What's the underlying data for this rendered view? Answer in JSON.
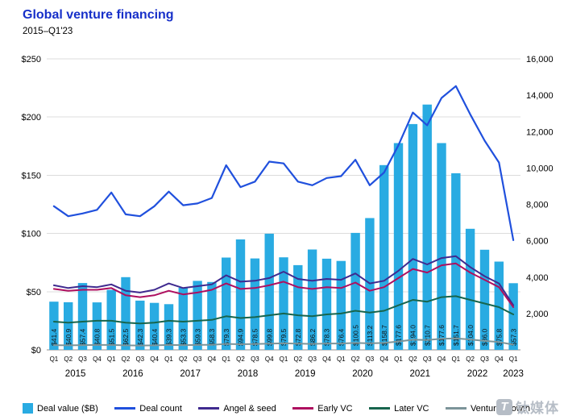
{
  "header": {
    "title": "Global venture financing",
    "subtitle": "2015–Q1'23"
  },
  "chart_data": {
    "type": "bar+line combo",
    "title": "Global venture financing",
    "subtitle": "2015–Q1'23",
    "grid": "horizontal",
    "legend_position": "bottom",
    "x_quarters": [
      "Q1",
      "Q2",
      "Q3",
      "Q4",
      "Q1",
      "Q2",
      "Q3",
      "Q4",
      "Q1",
      "Q2",
      "Q3",
      "Q4",
      "Q1",
      "Q2",
      "Q3",
      "Q4",
      "Q1",
      "Q2",
      "Q3",
      "Q4",
      "Q1",
      "Q2",
      "Q3",
      "Q4",
      "Q1",
      "Q2",
      "Q3",
      "Q4",
      "Q1",
      "Q2",
      "Q3",
      "Q4",
      "Q1"
    ],
    "x_years": [
      {
        "label": "2015",
        "span": 4
      },
      {
        "label": "2016",
        "span": 4
      },
      {
        "label": "2017",
        "span": 4
      },
      {
        "label": "2018",
        "span": 4
      },
      {
        "label": "2019",
        "span": 4
      },
      {
        "label": "2020",
        "span": 4
      },
      {
        "label": "2021",
        "span": 4
      },
      {
        "label": "2022",
        "span": 4
      },
      {
        "label": "2023",
        "span": 1
      }
    ],
    "left_axis": {
      "unit": "$B",
      "min": 0,
      "max": 250,
      "ticks": [
        "$0",
        "$50",
        "$100",
        "$150",
        "$200",
        "$250"
      ]
    },
    "right_axis": {
      "unit": "deal count",
      "min": 0,
      "max": 16000,
      "ticks": [
        "2,000",
        "4,000",
        "6,000",
        "8,000",
        "10,000",
        "12,000",
        "14,000",
        "16,000"
      ]
    },
    "bars": {
      "name": "Deal value ($B)",
      "color": "#29abe2",
      "values": [
        41.4,
        40.9,
        57.4,
        40.8,
        51.5,
        62.5,
        42.3,
        40.4,
        39.3,
        53.3,
        59.3,
        58.3,
        79.3,
        94.9,
        78.5,
        99.8,
        79.5,
        72.8,
        86.2,
        78.3,
        76.4,
        100.5,
        113.2,
        158.7,
        177.6,
        194.0,
        210.7,
        177.6,
        151.7,
        104.0,
        86.0,
        75.8,
        57.3
      ],
      "labels": [
        "$41.4",
        "$40.9",
        "$57.4",
        "$40.8",
        "$51.5",
        "$62.5",
        "$42.3",
        "$40.4",
        "$39.3",
        "$53.3",
        "$59.3",
        "$58.3",
        "$79.3",
        "$94.9",
        "$78.5",
        "$99.8",
        "$79.5",
        "$72.8",
        "$86.2",
        "$78.3",
        "$76.4",
        "$100.5",
        "$113.2",
        "$158.7",
        "$177.6",
        "$194.0",
        "$210.7",
        "$177.6",
        "$151.7",
        "$104.0",
        "$86.0",
        "$75.8",
        "$57.3"
      ]
    },
    "lines": [
      {
        "name": "Deal count",
        "color": "#2050dd",
        "axis": "right",
        "width": 2.2,
        "values": [
          7900,
          7350,
          7500,
          7700,
          8650,
          7450,
          7350,
          7900,
          8700,
          7950,
          8050,
          8350,
          10150,
          8950,
          9250,
          10350,
          10250,
          9250,
          9050,
          9450,
          9550,
          10450,
          9050,
          9750,
          11250,
          13050,
          12350,
          13850,
          14500,
          12950,
          11500,
          10300,
          6030
        ]
      },
      {
        "name": "Angel & seed",
        "color": "#3f2a8f",
        "axis": "right",
        "width": 2,
        "values": [
          3550,
          3400,
          3500,
          3450,
          3600,
          3250,
          3150,
          3300,
          3650,
          3400,
          3500,
          3600,
          4100,
          3750,
          3800,
          3950,
          4300,
          3900,
          3800,
          3900,
          3850,
          4200,
          3650,
          3800,
          4350,
          5000,
          4700,
          5050,
          5150,
          4550,
          4050,
          3650,
          2450
        ]
      },
      {
        "name": "Early VC",
        "color": "#ae0f5f",
        "axis": "right",
        "width": 2,
        "values": [
          3350,
          3250,
          3300,
          3300,
          3400,
          3000,
          2900,
          3000,
          3250,
          3050,
          3150,
          3300,
          3650,
          3350,
          3400,
          3550,
          3750,
          3450,
          3350,
          3450,
          3400,
          3700,
          3250,
          3450,
          3950,
          4450,
          4250,
          4650,
          4750,
          4250,
          3850,
          3450,
          2350
        ]
      },
      {
        "name": "Later VC",
        "color": "#17654d",
        "axis": "right",
        "width": 2,
        "values": [
          1550,
          1500,
          1550,
          1600,
          1600,
          1500,
          1450,
          1500,
          1600,
          1550,
          1600,
          1650,
          1850,
          1750,
          1800,
          1900,
          2000,
          1900,
          1850,
          1950,
          2000,
          2150,
          2050,
          2150,
          2450,
          2750,
          2650,
          2900,
          2950,
          2750,
          2550,
          2350,
          1950
        ]
      },
      {
        "name": "Venture growth",
        "color": "#7c9499",
        "axis": "right",
        "width": 2,
        "values": [
          260,
          250,
          260,
          270,
          270,
          250,
          240,
          250,
          270,
          260,
          270,
          280,
          330,
          310,
          320,
          340,
          360,
          340,
          330,
          350,
          350,
          380,
          360,
          380,
          460,
          560,
          540,
          610,
          630,
          570,
          490,
          430,
          290
        ]
      }
    ]
  },
  "watermark": {
    "text": "钛媒体",
    "icon_letter": "T"
  }
}
